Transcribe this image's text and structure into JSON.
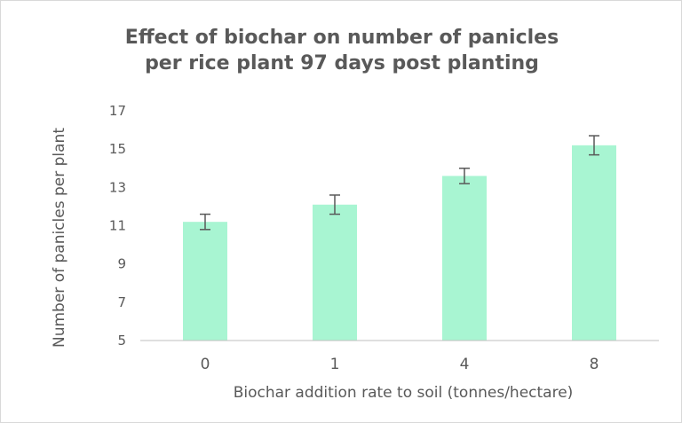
{
  "chart_data": {
    "type": "bar",
    "title_line1": "Effect of biochar on number of panicles",
    "title_line2": "per rice plant 97 days post planting",
    "xlabel": "Biochar addition rate to soil (tonnes/hectare)",
    "ylabel": "Number of panicles per plant",
    "categories": [
      "0",
      "1",
      "4",
      "8"
    ],
    "values": [
      11.2,
      12.1,
      13.6,
      15.2
    ],
    "error": [
      0.4,
      0.5,
      0.4,
      0.5
    ],
    "ylim": [
      5,
      17
    ],
    "yticks": [
      "5",
      "7",
      "9",
      "11",
      "13",
      "15",
      "17"
    ],
    "grid": false,
    "bar_color": "#a8f5d2",
    "error_bar_color": "#595959",
    "axis_color": "#bfbfbf",
    "text_color": "#595959"
  }
}
